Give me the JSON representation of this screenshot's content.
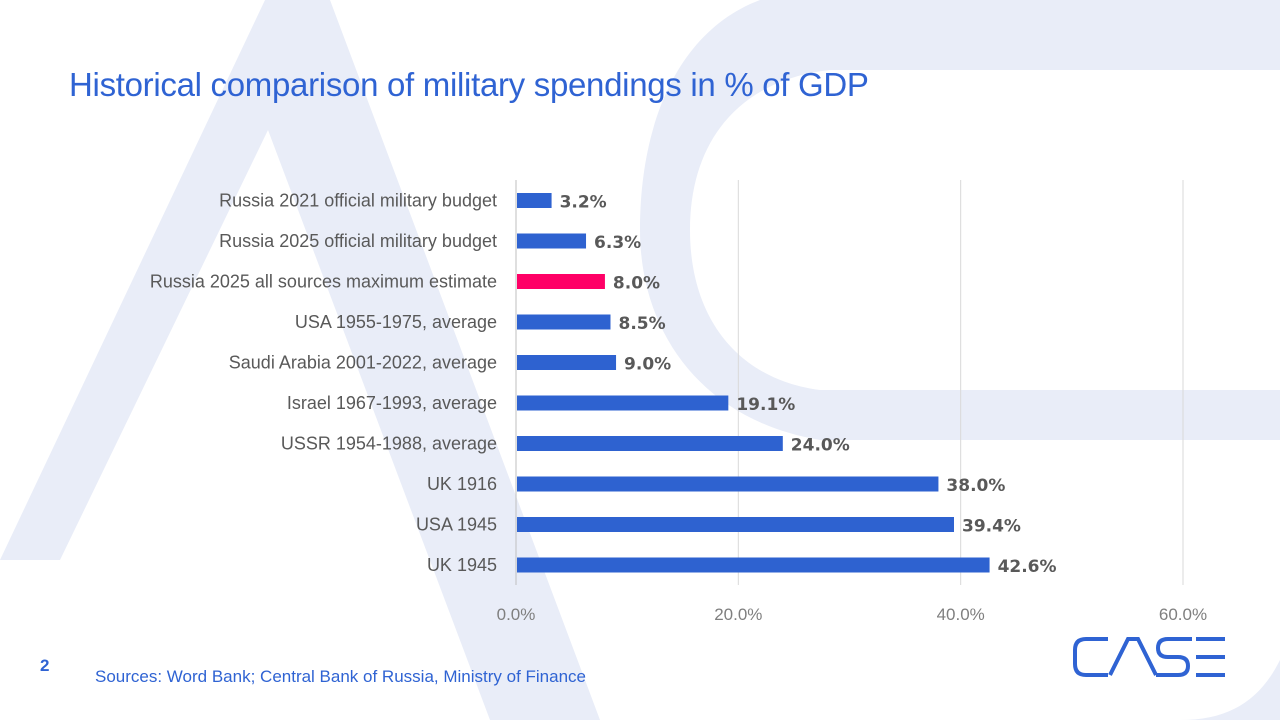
{
  "title": "Historical comparison of military spendings in % of GDP",
  "page_number": "2",
  "sources": "Sources: Word Bank; Central Bank of Russia, Ministry of Finance",
  "logo_text": "CASE",
  "colors": {
    "accent": "#2f63d3",
    "bar": "#2e62d0",
    "highlight": "#ff0066",
    "background_shape": "#e9edf8",
    "label": "#595959"
  },
  "chart_data": {
    "type": "bar",
    "orientation": "horizontal",
    "categories": [
      "Russia 2021 official military budget",
      "Russia 2025 official military budget",
      "Russia 2025 all sources maximum estimate",
      "USA 1955-1975, average",
      "Saudi Arabia 2001-2022, average",
      "Israel 1967-1993, average",
      "USSR 1954-1988, average",
      "UK 1916",
      "USA 1945",
      "UK 1945"
    ],
    "values": [
      3.2,
      6.3,
      8.0,
      8.5,
      9.0,
      19.1,
      24.0,
      38.0,
      39.4,
      42.6
    ],
    "data_labels": [
      "3.2%",
      "6.3%",
      "8.0%",
      "8.5%",
      "9.0%",
      "19.1%",
      "24.0%",
      "38.0%",
      "39.4%",
      "42.6%"
    ],
    "highlighted_category": "Russia 2025 all sources maximum estimate",
    "xlim": [
      0,
      60
    ],
    "x_ticks": [
      0,
      20,
      40,
      60
    ],
    "x_tick_labels": [
      "0.0%",
      "20.0%",
      "40.0%",
      "60.0%"
    ],
    "grid": "vertical",
    "legend": "none"
  }
}
